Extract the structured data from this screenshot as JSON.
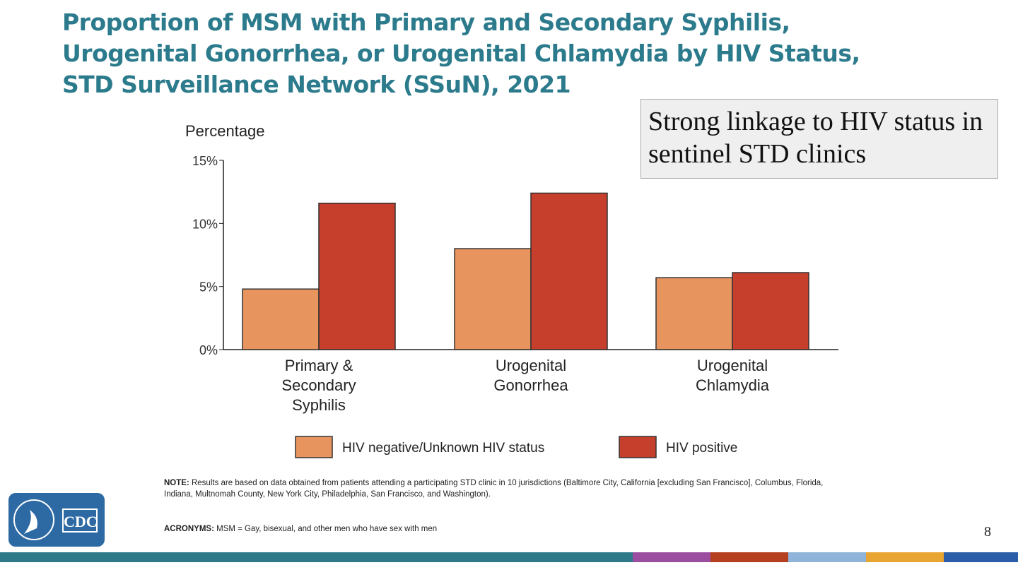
{
  "title": "Proportion of MSM with Primary and Secondary Syphilis, Urogenital Gonorrhea, or Urogenital Chlamydia by HIV Status, STD Surveillance Network (SSuN), 2021",
  "callout": "Strong linkage to HIV status in sentinel STD clinics",
  "chart_data": {
    "type": "bar",
    "ylabel": "Percentage",
    "ylim": [
      0,
      15
    ],
    "yticks": [
      "0%",
      "5%",
      "10%",
      "15%"
    ],
    "categories": [
      "Primary & Secondary Syphilis",
      "Urogenital Gonorrhea",
      "Urogenital Chlamydia"
    ],
    "series": [
      {
        "name": "HIV negative/Unknown HIV status",
        "values": [
          4.8,
          8.0,
          5.7
        ],
        "color": "#e8945f"
      },
      {
        "name": "HIV positive",
        "values": [
          11.6,
          12.4,
          6.1
        ],
        "color": "#c63f2c"
      }
    ],
    "grid": false,
    "legend": "bottom"
  },
  "note_label": "NOTE:",
  "note_text": " Results are based on data obtained from patients attending a participating STD clinic in 10 jurisdictions (Baltimore City, California [excluding San Francisco], Columbus, Florida, Indiana, Multnomah County, New York City, Philadelphia, San Francisco, and Washington).",
  "acronyms_label": "ACRONYMS:",
  "acronyms_text": " MSM = Gay, bisexual, and other men who have sex with men",
  "logo_text": "CDC",
  "page_number": "8",
  "stripe_colors": [
    "#2e7a88",
    "#9b4ea0",
    "#b5401f",
    "#8fb3d9",
    "#e9a531",
    "#2a5ea8"
  ]
}
